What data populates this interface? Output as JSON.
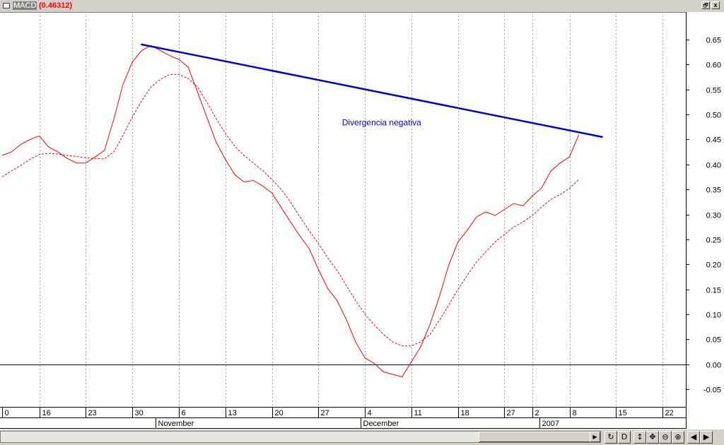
{
  "window": {
    "indicator_name": "MACD",
    "indicator_value": "(0.46312)",
    "restore_glyph": "🗗",
    "close_glyph": "x"
  },
  "chart_data": {
    "type": "line",
    "ylim": [
      -0.085,
      0.705
    ],
    "y_ticks": [
      "0.65",
      "0.60",
      "0.55",
      "0.50",
      "0.45",
      "0.40",
      "0.35",
      "0.30",
      "0.25",
      "0.20",
      "0.15",
      "0.10",
      "0.05",
      "0.00",
      "-0.05"
    ],
    "x_day_ticks": [
      {
        "label": "0",
        "x": 0
      },
      {
        "label": "16",
        "x": 4
      },
      {
        "label": "23",
        "x": 9
      },
      {
        "label": "30",
        "x": 14
      },
      {
        "label": "6",
        "x": 19
      },
      {
        "label": "13",
        "x": 24
      },
      {
        "label": "20",
        "x": 29
      },
      {
        "label": "27",
        "x": 34
      },
      {
        "label": "4",
        "x": 39
      },
      {
        "label": "11",
        "x": 44
      },
      {
        "label": "18",
        "x": 49
      },
      {
        "label": "27",
        "x": 54
      },
      {
        "label": "2",
        "x": 57
      },
      {
        "label": "8",
        "x": 61
      },
      {
        "label": "15",
        "x": 66
      },
      {
        "label": "22",
        "x": 71
      }
    ],
    "x_month_labels": [
      {
        "label": "November",
        "x": 16.5
      },
      {
        "label": "December",
        "x": 38.5
      },
      {
        "label": "2007",
        "x": 57.8
      }
    ],
    "xlim": [
      0,
      73.5
    ],
    "series": [
      {
        "color": "#ff0000",
        "dashed": false,
        "points": [
          [
            0,
            0.418
          ],
          [
            1,
            0.425
          ],
          [
            2,
            0.44
          ],
          [
            3,
            0.45
          ],
          [
            4,
            0.457
          ],
          [
            5,
            0.435
          ],
          [
            6,
            0.425
          ],
          [
            7,
            0.412
          ],
          [
            8,
            0.403
          ],
          [
            9,
            0.403
          ],
          [
            10,
            0.415
          ],
          [
            11,
            0.428
          ],
          [
            12,
            0.49
          ],
          [
            13,
            0.56
          ],
          [
            14,
            0.605
          ],
          [
            15,
            0.628
          ],
          [
            16,
            0.638
          ],
          [
            17,
            0.628
          ],
          [
            18,
            0.618
          ],
          [
            19,
            0.61
          ],
          [
            20,
            0.595
          ],
          [
            21,
            0.545
          ],
          [
            22,
            0.495
          ],
          [
            23,
            0.445
          ],
          [
            24,
            0.41
          ],
          [
            25,
            0.38
          ],
          [
            26,
            0.365
          ],
          [
            27,
            0.368
          ],
          [
            28,
            0.357
          ],
          [
            29,
            0.343
          ],
          [
            30,
            0.314
          ],
          [
            31,
            0.285
          ],
          [
            32,
            0.257
          ],
          [
            33,
            0.232
          ],
          [
            34,
            0.19
          ],
          [
            35,
            0.152
          ],
          [
            36,
            0.128
          ],
          [
            37,
            0.09
          ],
          [
            38,
            0.045
          ],
          [
            39,
            0.013
          ],
          [
            40,
            0.002
          ],
          [
            41,
            -0.015
          ],
          [
            42,
            -0.02
          ],
          [
            43,
            -0.025
          ],
          [
            44,
            0.005
          ],
          [
            45,
            0.035
          ],
          [
            46,
            0.08
          ],
          [
            47,
            0.135
          ],
          [
            48,
            0.198
          ],
          [
            49,
            0.245
          ],
          [
            50,
            0.268
          ],
          [
            51,
            0.295
          ],
          [
            52,
            0.305
          ],
          [
            53,
            0.298
          ],
          [
            54,
            0.31
          ],
          [
            55,
            0.322
          ],
          [
            56,
            0.317
          ],
          [
            57,
            0.337
          ],
          [
            58,
            0.353
          ],
          [
            59,
            0.387
          ],
          [
            60,
            0.403
          ],
          [
            61,
            0.415
          ],
          [
            62,
            0.46
          ]
        ]
      },
      {
        "color": "#ff0000",
        "dashed": true,
        "points": [
          [
            0,
            0.375
          ],
          [
            1,
            0.387
          ],
          [
            2,
            0.398
          ],
          [
            3,
            0.41
          ],
          [
            4,
            0.42
          ],
          [
            5,
            0.422
          ],
          [
            6,
            0.421
          ],
          [
            7,
            0.418
          ],
          [
            8,
            0.416
          ],
          [
            9,
            0.413
          ],
          [
            10,
            0.412
          ],
          [
            11,
            0.411
          ],
          [
            12,
            0.425
          ],
          [
            13,
            0.458
          ],
          [
            14,
            0.495
          ],
          [
            15,
            0.527
          ],
          [
            16,
            0.555
          ],
          [
            17,
            0.57
          ],
          [
            18,
            0.58
          ],
          [
            19,
            0.58
          ],
          [
            20,
            0.572
          ],
          [
            21,
            0.555
          ],
          [
            22,
            0.525
          ],
          [
            23,
            0.492
          ],
          [
            24,
            0.462
          ],
          [
            25,
            0.437
          ],
          [
            26,
            0.418
          ],
          [
            27,
            0.403
          ],
          [
            28,
            0.388
          ],
          [
            29,
            0.37
          ],
          [
            30,
            0.35
          ],
          [
            31,
            0.325
          ],
          [
            32,
            0.295
          ],
          [
            33,
            0.268
          ],
          [
            34,
            0.242
          ],
          [
            35,
            0.213
          ],
          [
            36,
            0.188
          ],
          [
            37,
            0.158
          ],
          [
            38,
            0.128
          ],
          [
            39,
            0.101
          ],
          [
            40,
            0.079
          ],
          [
            41,
            0.06
          ],
          [
            42,
            0.045
          ],
          [
            43,
            0.037
          ],
          [
            44,
            0.037
          ],
          [
            45,
            0.045
          ],
          [
            46,
            0.06
          ],
          [
            47,
            0.088
          ],
          [
            48,
            0.118
          ],
          [
            49,
            0.15
          ],
          [
            50,
            0.178
          ],
          [
            51,
            0.205
          ],
          [
            52,
            0.225
          ],
          [
            53,
            0.245
          ],
          [
            54,
            0.26
          ],
          [
            55,
            0.275
          ],
          [
            56,
            0.285
          ],
          [
            57,
            0.298
          ],
          [
            58,
            0.315
          ],
          [
            59,
            0.33
          ],
          [
            60,
            0.34
          ],
          [
            61,
            0.352
          ],
          [
            62,
            0.37
          ]
        ]
      }
    ],
    "trendline": {
      "color": "#0000cc",
      "from": [
        15,
        0.64
      ],
      "to": [
        64.5,
        0.455
      ]
    },
    "zero_line": {
      "color": "#000080",
      "y": 0.0
    },
    "annotation": {
      "text": "Divergencia negativa",
      "x": 40.8,
      "y": 0.478,
      "color": "#0000cc"
    },
    "grid": "vertical dotted"
  },
  "statusbar": {
    "scroll_right_glyph": "▶",
    "buttons": [
      {
        "name": "refresh-button",
        "glyph": "↻"
      },
      {
        "name": "daily-period-button",
        "glyph": "D"
      },
      {
        "name": "vertical-resize-button",
        "glyph": "↕"
      },
      {
        "name": "move-button",
        "glyph": "✥"
      },
      {
        "name": "zoom-out-button",
        "glyph": "⊖"
      },
      {
        "name": "zoom-in-button",
        "glyph": "⊕"
      },
      {
        "name": "scroll-left-button",
        "glyph": "◀"
      },
      {
        "name": "scroll-right-button",
        "glyph": "▶"
      }
    ]
  }
}
